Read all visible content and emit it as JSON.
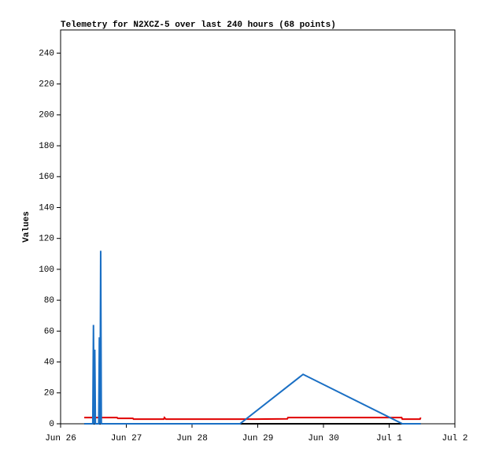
{
  "chart_data": {
    "type": "line",
    "title": "Telemetry for N2XCZ-5 over last 240 hours (68 points)",
    "y_label": "Values",
    "xlim": [
      0,
      6
    ],
    "xticks": [
      {
        "value": 0,
        "label": "Jun 26"
      },
      {
        "value": 1,
        "label": "Jun 27"
      },
      {
        "value": 2,
        "label": "Jun 28"
      },
      {
        "value": 3,
        "label": "Jun 29"
      },
      {
        "value": 4,
        "label": "Jun 30"
      },
      {
        "value": 5,
        "label": "Jul 1"
      },
      {
        "value": 6,
        "label": "Jul 2"
      }
    ],
    "ylim": [
      0,
      255
    ],
    "yticks": [
      0,
      20,
      40,
      60,
      80,
      100,
      120,
      140,
      160,
      180,
      200,
      220,
      240
    ],
    "grid": false,
    "series": [
      {
        "color": "#000000",
        "x": [
          0.36,
          5.48
        ],
        "values": [
          0,
          0
        ]
      },
      {
        "color": "#e00000",
        "x": [
          0.36,
          0.86,
          0.87,
          1.1,
          1.11,
          1.57,
          1.58,
          1.6,
          2.97,
          3.45,
          3.46,
          5.19,
          5.2,
          5.47,
          5.48
        ],
        "values": [
          4,
          4,
          3.5,
          3.5,
          3,
          3,
          4,
          3,
          3,
          3.2,
          4,
          4,
          3,
          3,
          4
        ]
      },
      {
        "color": "#1a6fc4",
        "x": [
          0.36,
          0.49,
          0.5,
          0.51,
          0.52,
          0.53,
          0.54,
          0.58,
          0.59,
          0.6,
          0.61,
          0.62,
          2.73,
          3.69,
          5.2,
          5.48
        ],
        "values": [
          0,
          0,
          64,
          0,
          48,
          0,
          0,
          0,
          56,
          0,
          112,
          0,
          0,
          32,
          0,
          0
        ]
      }
    ]
  }
}
